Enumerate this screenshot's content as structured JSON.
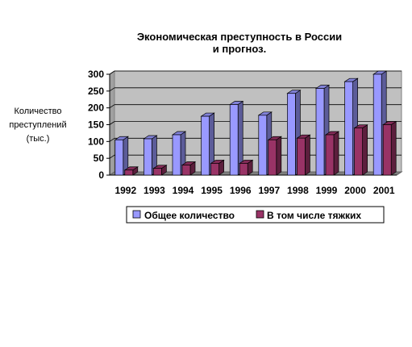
{
  "chart_data": {
    "type": "bar",
    "title_lines": [
      "Экономическая преступность в России",
      "и прогноз."
    ],
    "ylabel_lines": [
      "Количество",
      "преступлений",
      "(тыс.)"
    ],
    "categories": [
      "1992",
      "1993",
      "1994",
      "1995",
      "1996",
      "1997",
      "1998",
      "1999",
      "2000",
      "2001"
    ],
    "series": [
      {
        "name": "Общее количество",
        "values": [
          105,
          108,
          120,
          175,
          210,
          178,
          243,
          258,
          278,
          300
        ],
        "color": "#9999ff"
      },
      {
        "name": "В том числе тяжких",
        "values": [
          15,
          20,
          30,
          35,
          35,
          105,
          110,
          120,
          140,
          150
        ],
        "color": "#993366"
      }
    ],
    "yticks": [
      0,
      50,
      100,
      150,
      200,
      250,
      300
    ],
    "ylim": [
      0,
      300
    ],
    "grid": true,
    "legend_position": "bottom"
  }
}
